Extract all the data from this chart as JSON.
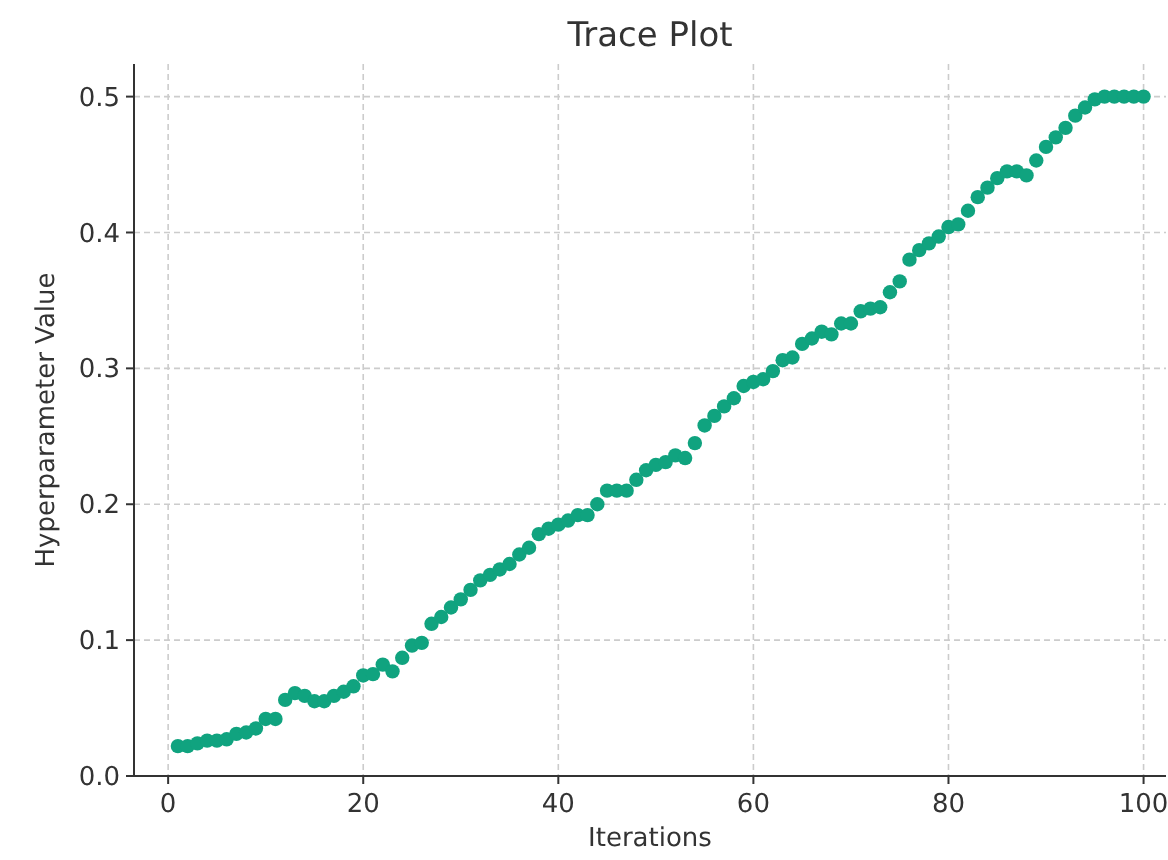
{
  "chart_data": {
    "type": "scatter",
    "title": "Trace Plot",
    "xlabel": "Iterations",
    "ylabel": "Hyperparameter Value",
    "x": [
      1,
      2,
      3,
      4,
      5,
      6,
      7,
      8,
      9,
      10,
      11,
      12,
      13,
      14,
      15,
      16,
      17,
      18,
      19,
      20,
      21,
      22,
      23,
      24,
      25,
      26,
      27,
      28,
      29,
      30,
      31,
      32,
      33,
      34,
      35,
      36,
      37,
      38,
      39,
      40,
      41,
      42,
      43,
      44,
      45,
      46,
      47,
      48,
      49,
      50,
      51,
      52,
      53,
      54,
      55,
      56,
      57,
      58,
      59,
      60,
      61,
      62,
      63,
      64,
      65,
      66,
      67,
      68,
      69,
      70,
      71,
      72,
      73,
      74,
      75,
      76,
      77,
      78,
      79,
      80,
      81,
      82,
      83,
      84,
      85,
      86,
      87,
      88,
      89,
      90,
      91,
      92,
      93,
      94,
      95,
      96,
      97,
      98,
      99,
      100
    ],
    "series": [
      {
        "color": "#10a37f",
        "values": [
          0.022,
          0.022,
          0.024,
          0.026,
          0.026,
          0.027,
          0.031,
          0.032,
          0.035,
          0.042,
          0.042,
          0.056,
          0.061,
          0.059,
          0.055,
          0.055,
          0.059,
          0.062,
          0.066,
          0.074,
          0.075,
          0.082,
          0.077,
          0.087,
          0.096,
          0.098,
          0.112,
          0.117,
          0.124,
          0.13,
          0.137,
          0.144,
          0.148,
          0.152,
          0.156,
          0.163,
          0.168,
          0.178,
          0.182,
          0.185,
          0.188,
          0.192,
          0.192,
          0.2,
          0.21,
          0.21,
          0.21,
          0.218,
          0.225,
          0.229,
          0.231,
          0.236,
          0.234,
          0.245,
          0.258,
          0.265,
          0.272,
          0.278,
          0.287,
          0.29,
          0.292,
          0.298,
          0.306,
          0.308,
          0.318,
          0.322,
          0.327,
          0.325,
          0.333,
          0.333,
          0.342,
          0.344,
          0.345,
          0.356,
          0.364,
          0.38,
          0.387,
          0.392,
          0.397,
          0.404,
          0.406,
          0.416,
          0.426,
          0.433,
          0.44,
          0.445,
          0.445,
          0.442,
          0.453,
          0.463,
          0.47,
          0.477,
          0.486,
          0.492,
          0.498,
          0.5,
          0.5,
          0.5,
          0.5,
          0.5
        ]
      }
    ],
    "xlim": [
      -3.5,
      102.3
    ],
    "xticks": [
      0,
      20,
      40,
      60,
      80,
      100
    ],
    "ylim": [
      0,
      0.524
    ],
    "yticks": [
      {
        "value": 0,
        "label": "0.0"
      },
      0.1,
      0.2,
      0.3,
      0.4,
      0.5
    ],
    "grid": true,
    "marker": "circle"
  }
}
